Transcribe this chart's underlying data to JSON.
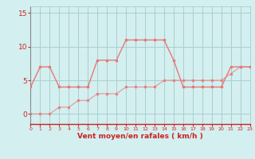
{
  "hours": [
    0,
    1,
    2,
    3,
    4,
    5,
    6,
    7,
    8,
    9,
    10,
    11,
    12,
    13,
    14,
    15,
    16,
    17,
    18,
    19,
    20,
    21,
    22,
    23
  ],
  "rafales": [
    4,
    7,
    7,
    4,
    4,
    4,
    4,
    8,
    8,
    8,
    11,
    11,
    11,
    11,
    11,
    8,
    4,
    4,
    4,
    4,
    4,
    7,
    7,
    7
  ],
  "moyen": [
    0,
    0,
    0,
    1,
    1,
    2,
    2,
    3,
    3,
    3,
    4,
    4,
    4,
    4,
    5,
    5,
    5,
    5,
    5,
    5,
    5,
    6,
    7,
    7
  ],
  "line_color": "#e87878",
  "bg_color": "#d4efef",
  "grid_color": "#a8cece",
  "axis_color": "#cc2222",
  "xlabel": "Vent moyen/en rafales ( km/h )",
  "ylim": [
    -1.5,
    16
  ],
  "xlim": [
    0,
    23
  ],
  "yticks": [
    0,
    5,
    10,
    15
  ],
  "xticks": [
    0,
    1,
    2,
    3,
    4,
    5,
    6,
    7,
    8,
    9,
    10,
    11,
    12,
    13,
    14,
    15,
    16,
    17,
    18,
    19,
    20,
    21,
    22,
    23
  ]
}
